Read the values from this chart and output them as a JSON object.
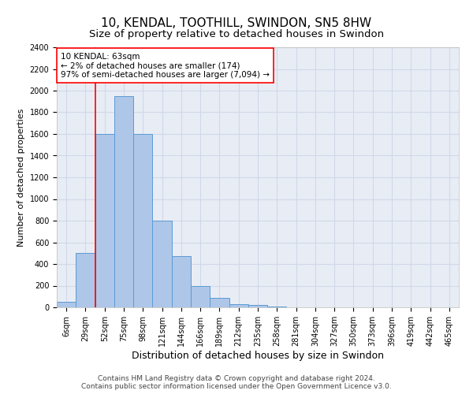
{
  "title": "10, KENDAL, TOOTHILL, SWINDON, SN5 8HW",
  "subtitle": "Size of property relative to detached houses in Swindon",
  "xlabel": "Distribution of detached houses by size in Swindon",
  "ylabel": "Number of detached properties",
  "categories": [
    "6sqm",
    "29sqm",
    "52sqm",
    "75sqm",
    "98sqm",
    "121sqm",
    "144sqm",
    "166sqm",
    "189sqm",
    "212sqm",
    "235sqm",
    "258sqm",
    "281sqm",
    "304sqm",
    "327sqm",
    "350sqm",
    "373sqm",
    "396sqm",
    "419sqm",
    "442sqm",
    "465sqm"
  ],
  "values": [
    50,
    500,
    1600,
    1950,
    1600,
    800,
    475,
    200,
    90,
    30,
    20,
    5,
    0,
    0,
    0,
    0,
    0,
    0,
    0,
    0,
    0
  ],
  "bar_color": "#aec6e8",
  "bar_edge_color": "#5b9bd5",
  "vline_color": "red",
  "vline_x": 1.5,
  "annotation_text": "10 KENDAL: 63sqm\n← 2% of detached houses are smaller (174)\n97% of semi-detached houses are larger (7,094) →",
  "annotation_box_color": "white",
  "annotation_box_edge_color": "red",
  "ylim": [
    0,
    2400
  ],
  "yticks": [
    0,
    200,
    400,
    600,
    800,
    1000,
    1200,
    1400,
    1600,
    1800,
    2000,
    2200,
    2400
  ],
  "grid_color": "#d0d8e8",
  "background_color": "#e8edf5",
  "footer_line1": "Contains HM Land Registry data © Crown copyright and database right 2024.",
  "footer_line2": "Contains public sector information licensed under the Open Government Licence v3.0.",
  "title_fontsize": 11,
  "subtitle_fontsize": 9.5,
  "xlabel_fontsize": 9,
  "ylabel_fontsize": 8,
  "tick_fontsize": 7,
  "footer_fontsize": 6.5,
  "annotation_fontsize": 7.5
}
